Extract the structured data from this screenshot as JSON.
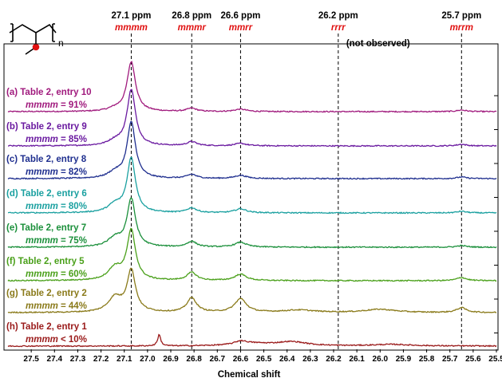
{
  "chart_data": {
    "type": "line",
    "xlabel": "Chemical shift",
    "x_reversed": true,
    "xlim": [
      25.5,
      27.6
    ],
    "x_ticks": [
      "27.5",
      "27.4",
      "27.3",
      "27.2",
      "27.1",
      "27.0",
      "26.9",
      "26.8",
      "26.7",
      "26.6",
      "26.5",
      "26.4",
      "26.3",
      "26.2",
      "26.1",
      "26.0",
      "25.9",
      "25.8",
      "25.7",
      "25.6",
      "25.5"
    ],
    "peak_markers": [
      {
        "shift": 27.07,
        "ppm_label": "27.1 ppm",
        "assignment": "mmmm",
        "note": ""
      },
      {
        "shift": 26.81,
        "ppm_label": "26.8 ppm",
        "assignment": "mmmr",
        "note": ""
      },
      {
        "shift": 26.6,
        "ppm_label": "26.6 ppm",
        "assignment": "mmrr",
        "note": ""
      },
      {
        "shift": 26.18,
        "ppm_label": "26.2 ppm",
        "assignment": "rrrr",
        "note": "(not observed)"
      },
      {
        "shift": 25.65,
        "ppm_label": "25.7 ppm",
        "assignment": "mrrm",
        "note": ""
      }
    ],
    "series": [
      {
        "name": "(a) Table 2, entry 10",
        "tacticity_label": "mmmm",
        "tacticity_value": "= 91%",
        "color": "#a01a7d",
        "main_peak_height": 62,
        "shoulder": 0.05,
        "peak_mmmr": 4,
        "peak_mmrr": 3,
        "peak_mrrm": 2
      },
      {
        "name": "(b) Table 2, entry 9",
        "tacticity_label": "mmmm",
        "tacticity_value": "= 85%",
        "color": "#6a1aa0",
        "main_peak_height": 70,
        "shoulder": 0.08,
        "peak_mmmr": 5,
        "peak_mmrr": 3,
        "peak_mrrm": 2
      },
      {
        "name": "(c) Table 2, entry 8",
        "tacticity_label": "mmmm",
        "tacticity_value": "= 82%",
        "color": "#1f2f8f",
        "main_peak_height": 70,
        "shoulder": 0.1,
        "peak_mmmr": 5,
        "peak_mmrr": 4,
        "peak_mrrm": 2
      },
      {
        "name": "(d) Table 2, entry 6",
        "tacticity_label": "mmmm",
        "tacticity_value": "= 80%",
        "color": "#1aa0a0",
        "main_peak_height": 68,
        "shoulder": 0.14,
        "peak_mmmr": 6,
        "peak_mmrr": 5,
        "peak_mrrm": 2
      },
      {
        "name": "(e) Table 2, entry 7",
        "tacticity_label": "mmmm",
        "tacticity_value": "= 75%",
        "color": "#1a8f3a",
        "main_peak_height": 60,
        "shoulder": 0.18,
        "peak_mmmr": 7,
        "peak_mmrr": 6,
        "peak_mrrm": 2
      },
      {
        "name": "(f) Table 2, entry 5",
        "tacticity_label": "mmmm",
        "tacticity_value": "= 60%",
        "color": "#4aa01a",
        "main_peak_height": 62,
        "shoulder": 0.25,
        "peak_mmmr": 10,
        "peak_mmrr": 8,
        "peak_mrrm": 4
      },
      {
        "name": "(g) Table 2, entry 2",
        "tacticity_label": "mmmm",
        "tacticity_value": "= 44%",
        "color": "#8a7a1a",
        "main_peak_height": 52,
        "shoulder": 0.35,
        "peak_mmmr": 18,
        "peak_mmrr": 17,
        "peak_mrrm": 6
      },
      {
        "name": "(h) Table 2, entry 1",
        "tacticity_label": "mmmm",
        "tacticity_value": "< 10%",
        "color": "#9a1a1a",
        "main_peak_height": 0,
        "shoulder": 0,
        "peak_mmmr": 0,
        "peak_mmrr": 4,
        "peak_mrrm": 0
      }
    ]
  },
  "structure": {
    "subscript": "n",
    "atom_color": "#e01010"
  },
  "colors": {
    "marker_label": "#e01010",
    "axis": "#000000"
  }
}
